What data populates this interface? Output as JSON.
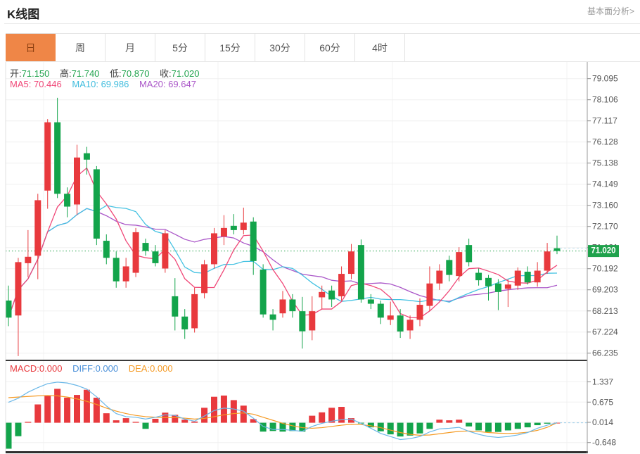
{
  "header": {
    "title": "K线图",
    "link": "基本面分析>"
  },
  "tabs": [
    {
      "label": "日",
      "active": true
    },
    {
      "label": "周",
      "active": false
    },
    {
      "label": "月",
      "active": false
    },
    {
      "label": "5分",
      "active": false
    },
    {
      "label": "15分",
      "active": false
    },
    {
      "label": "30分",
      "active": false
    },
    {
      "label": "60分",
      "active": false
    },
    {
      "label": "4时",
      "active": false
    }
  ],
  "legend": {
    "open_label": "开:",
    "open": "71.150",
    "high_label": "高:",
    "high": "71.740",
    "low_label": "低:",
    "low": "70.870",
    "close_label": "收:",
    "close": "71.020",
    "ma5_label": "MA5:",
    "ma5": "70.446",
    "ma10_label": "MA10:",
    "ma10": "69.986",
    "ma20_label": "MA20:",
    "ma20": "69.647",
    "macd_label": "MACD:",
    "macd": "0.000",
    "diff_label": "DIFF:",
    "diff": "0.000",
    "dea_label": "DEA:",
    "dea": "0.000"
  },
  "price_axis": {
    "labels": [
      "79.095",
      "78.106",
      "77.117",
      "76.128",
      "75.138",
      "74.149",
      "73.160",
      "72.170",
      "71.181",
      "70.192",
      "69.203",
      "68.213",
      "67.224",
      "66.235"
    ],
    "current": "71.020"
  },
  "macd_axis": {
    "labels": [
      "1.337",
      "0.675",
      "0.014",
      "-0.648"
    ]
  },
  "colors": {
    "up": "#e8393d",
    "down": "#13a44b",
    "ma5": "#f04878",
    "ma10": "#45c2e2",
    "ma20": "#aa56c8",
    "diff_line": "#6cb8e8",
    "dea_line": "#f59a23",
    "grid": "#f0f0f0",
    "axis": "#999999",
    "tick_text": "#555555",
    "badge_bg": "#1fa24c",
    "badge_text": "#ffffff",
    "current_line": "#27a24d",
    "tab_active_bg": "#ef8647"
  },
  "chart_data": {
    "type": "candlestick+macd",
    "title": "K线图 日K",
    "price_ylim": [
      65.9,
      79.87
    ],
    "macd_ylim": [
      -0.95,
      1.45
    ],
    "grid": true,
    "ma_periods": [
      5,
      10,
      20
    ],
    "current_price": 71.02,
    "candles_ohlc": [
      [
        68.7,
        69.4,
        67.5,
        67.9
      ],
      [
        68.0,
        70.7,
        66.1,
        70.5
      ],
      [
        70.45,
        72.0,
        69.8,
        70.75
      ],
      [
        70.8,
        73.7,
        69.7,
        73.4
      ],
      [
        73.85,
        77.2,
        73.0,
        77.05
      ],
      [
        77.05,
        78.2,
        73.5,
        73.7
      ],
      [
        73.7,
        74.0,
        72.6,
        73.1
      ],
      [
        73.2,
        76.0,
        72.7,
        75.4
      ],
      [
        75.6,
        75.9,
        74.6,
        75.3
      ],
      [
        74.85,
        75.0,
        71.3,
        71.6
      ],
      [
        71.5,
        71.8,
        70.4,
        70.7
      ],
      [
        70.7,
        71.0,
        69.3,
        69.6
      ],
      [
        69.6,
        70.7,
        69.3,
        70.3
      ],
      [
        70.0,
        72.1,
        69.8,
        71.9
      ],
      [
        71.4,
        71.6,
        70.8,
        71.02
      ],
      [
        71.0,
        71.3,
        70.3,
        70.45
      ],
      [
        70.2,
        72.0,
        70.0,
        71.85
      ],
      [
        68.9,
        69.75,
        67.3,
        67.95
      ],
      [
        67.95,
        68.3,
        66.9,
        67.35
      ],
      [
        67.4,
        69.3,
        67.2,
        69.0
      ],
      [
        69.05,
        70.6,
        68.8,
        70.4
      ],
      [
        70.4,
        72.1,
        70.2,
        71.85
      ],
      [
        71.7,
        72.7,
        71.3,
        72.1
      ],
      [
        72.2,
        72.75,
        71.8,
        72.0
      ],
      [
        72.0,
        73.05,
        71.8,
        72.35
      ],
      [
        72.4,
        72.6,
        69.9,
        70.55
      ],
      [
        70.15,
        70.4,
        67.9,
        68.05
      ],
      [
        68.05,
        68.3,
        67.3,
        67.8
      ],
      [
        68.1,
        69.15,
        67.9,
        68.75
      ],
      [
        68.75,
        69.0,
        67.9,
        68.2
      ],
      [
        68.2,
        68.87,
        66.45,
        67.26
      ],
      [
        67.3,
        68.9,
        66.84,
        68.2
      ],
      [
        68.85,
        69.4,
        68.3,
        69.1
      ],
      [
        69.17,
        69.4,
        68.4,
        68.75
      ],
      [
        68.9,
        70.3,
        68.7,
        69.95
      ],
      [
        69.95,
        71.35,
        69.7,
        71.0
      ],
      [
        71.3,
        71.56,
        68.6,
        68.75
      ],
      [
        68.75,
        69.0,
        68.3,
        68.55
      ],
      [
        68.55,
        68.7,
        67.6,
        67.9
      ],
      [
        67.8,
        68.65,
        67.55,
        68.0
      ],
      [
        68.0,
        68.3,
        66.95,
        67.25
      ],
      [
        67.3,
        68.0,
        66.9,
        67.8
      ],
      [
        67.8,
        68.8,
        67.5,
        68.5
      ],
      [
        68.45,
        70.3,
        68.2,
        69.5
      ],
      [
        69.5,
        70.4,
        69.2,
        70.1
      ],
      [
        70.6,
        70.8,
        69.6,
        69.9
      ],
      [
        69.85,
        71.2,
        69.6,
        70.97
      ],
      [
        71.3,
        71.6,
        70.3,
        70.5
      ],
      [
        70.0,
        70.2,
        69.4,
        69.65
      ],
      [
        69.76,
        69.9,
        68.7,
        69.37
      ],
      [
        69.5,
        69.7,
        68.25,
        69.1
      ],
      [
        69.25,
        69.7,
        68.4,
        69.45
      ],
      [
        69.4,
        70.25,
        69.2,
        70.1
      ],
      [
        70.05,
        70.3,
        69.45,
        69.55
      ],
      [
        69.55,
        70.5,
        69.35,
        70.1
      ],
      [
        70.1,
        71.4,
        69.95,
        71.0
      ],
      [
        71.15,
        71.74,
        70.87,
        71.02
      ]
    ],
    "macd": {
      "hist": [
        -0.85,
        -0.44,
        0.03,
        0.6,
        0.89,
        1.11,
        0.82,
        0.91,
        1.08,
        0.82,
        0.31,
        0.08,
        0.15,
        0.03,
        -0.2,
        0.13,
        0.33,
        0.26,
        0.1,
        0.04,
        0.49,
        0.85,
        0.89,
        0.74,
        0.56,
        0.12,
        -0.29,
        -0.27,
        -0.29,
        -0.27,
        -0.29,
        0.23,
        0.34,
        0.49,
        0.52,
        0.15,
        -0.02,
        -0.15,
        -0.28,
        -0.38,
        -0.45,
        -0.42,
        -0.35,
        -0.2,
        0.1,
        0.08,
        0.1,
        -0.12,
        -0.25,
        -0.3,
        -0.3,
        -0.25,
        -0.2,
        -0.15,
        -0.08,
        -0.03,
        0.0
      ],
      "diff": [
        0.67,
        0.8,
        1.0,
        1.15,
        1.28,
        1.33,
        1.3,
        1.22,
        1.1,
        0.85,
        0.55,
        0.3,
        0.2,
        0.18,
        0.12,
        0.18,
        0.26,
        0.24,
        0.12,
        0.05,
        0.22,
        0.4,
        0.48,
        0.45,
        0.38,
        0.15,
        -0.12,
        -0.22,
        -0.22,
        -0.25,
        -0.28,
        -0.12,
        -0.02,
        0.05,
        0.1,
        0.12,
        -0.02,
        -0.18,
        -0.35,
        -0.45,
        -0.55,
        -0.52,
        -0.45,
        -0.3,
        -0.2,
        -0.18,
        -0.15,
        -0.28,
        -0.38,
        -0.45,
        -0.48,
        -0.45,
        -0.4,
        -0.32,
        -0.18,
        -0.08,
        0.0
      ],
      "dea": [
        0.82,
        0.84,
        0.86,
        0.88,
        0.89,
        0.88,
        0.84,
        0.78,
        0.7,
        0.6,
        0.48,
        0.38,
        0.3,
        0.24,
        0.2,
        0.18,
        0.17,
        0.17,
        0.15,
        0.12,
        0.14,
        0.2,
        0.26,
        0.3,
        0.32,
        0.28,
        0.18,
        0.08,
        -0.02,
        -0.1,
        -0.16,
        -0.18,
        -0.16,
        -0.12,
        -0.08,
        -0.05,
        -0.06,
        -0.1,
        -0.16,
        -0.24,
        -0.32,
        -0.38,
        -0.41,
        -0.4,
        -0.36,
        -0.32,
        -0.28,
        -0.27,
        -0.29,
        -0.32,
        -0.34,
        -0.35,
        -0.34,
        -0.31,
        -0.25,
        -0.15,
        0.0
      ]
    }
  }
}
